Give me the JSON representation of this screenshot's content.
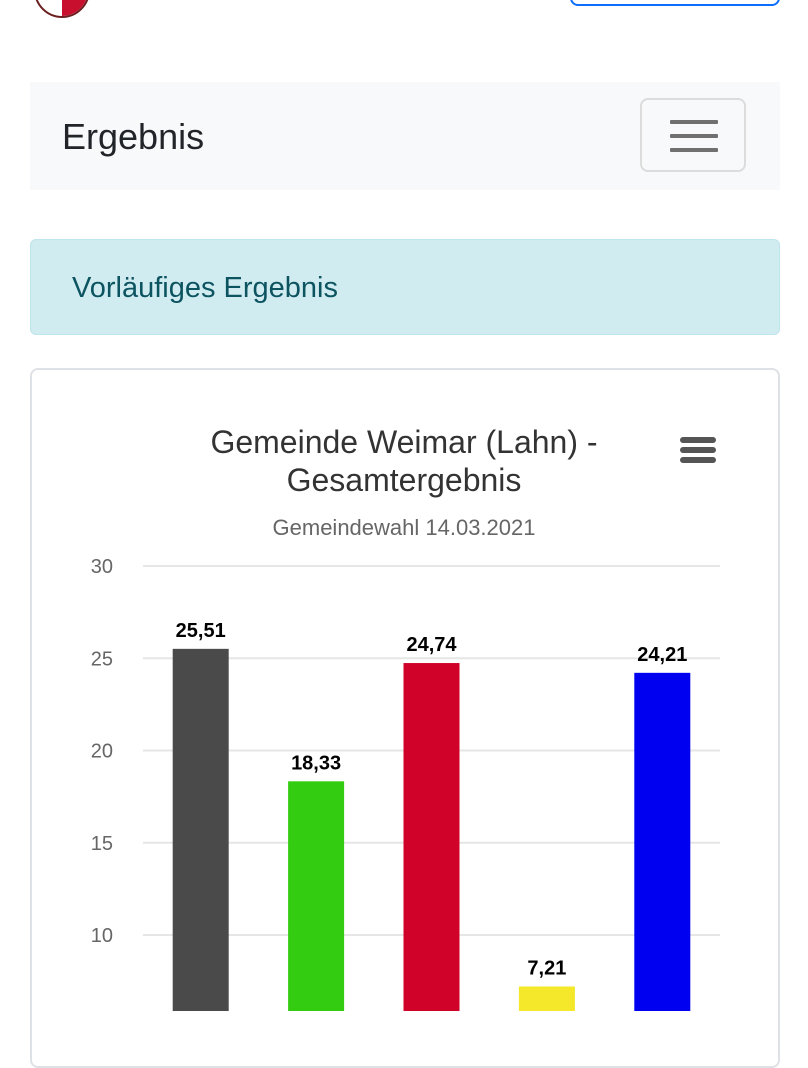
{
  "navbar": {
    "brand": "Ergebnis"
  },
  "alert": {
    "text": "Vorläufiges Ergebnis"
  },
  "chart_data": {
    "type": "bar",
    "title_line1": "Gemeinde Weimar (Lahn) -",
    "title_line2": "Gesamtergebnis",
    "subtitle": "Gemeindewahl 14.03.2021",
    "xlabel": "",
    "ylabel": "",
    "ylim": [
      0,
      30
    ],
    "yticks": [
      "10",
      "15",
      "20",
      "25",
      "30"
    ],
    "grid": true,
    "values": [
      25.51,
      18.33,
      24.74,
      7.21,
      24.21
    ],
    "value_labels": [
      "25,51",
      "18,33",
      "24,74",
      "7,21",
      "24,21"
    ],
    "colors": [
      "#4a4a4a",
      "#33cc11",
      "#d0022a",
      "#f5e72a",
      "#0000f0"
    ]
  }
}
